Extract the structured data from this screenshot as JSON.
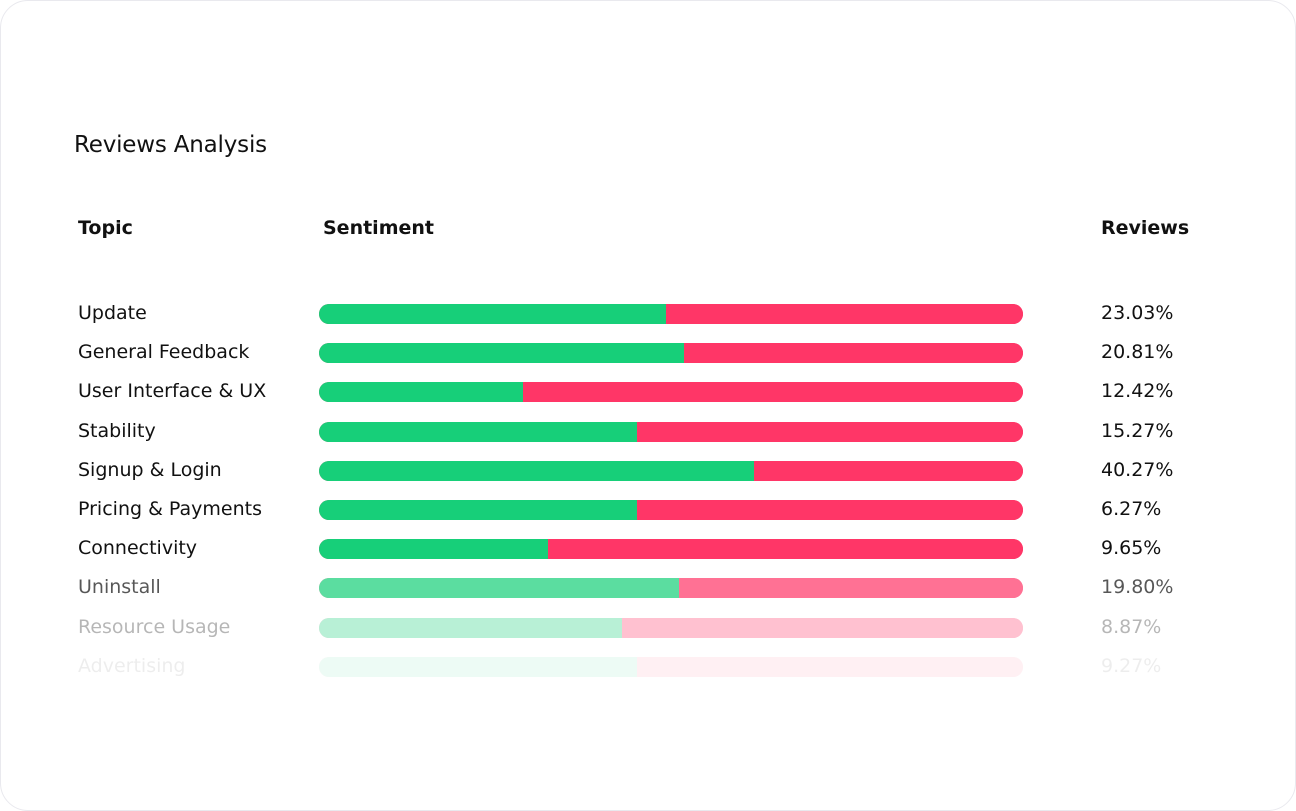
{
  "title": "Reviews Analysis",
  "headers": {
    "topic": "Topic",
    "sentiment": "Sentiment",
    "reviews": "Reviews"
  },
  "colors": {
    "positive": "#17cf79",
    "negative": "#ff3667",
    "text": "#111111"
  },
  "rows": [
    {
      "topic": "Update",
      "positive": 0.493,
      "reviews": "23.03%",
      "opacity": 1
    },
    {
      "topic": "General Feedback",
      "positive": 0.518,
      "reviews": "20.81%",
      "opacity": 1
    },
    {
      "topic": "User Interface & UX",
      "positive": 0.29,
      "reviews": "12.42%",
      "opacity": 1
    },
    {
      "topic": "Stability",
      "positive": 0.452,
      "reviews": "15.27%",
      "opacity": 1
    },
    {
      "topic": "Signup & Login",
      "positive": 0.618,
      "reviews": "40.27%",
      "opacity": 1
    },
    {
      "topic": "Pricing & Payments",
      "positive": 0.452,
      "reviews": "6.27%",
      "opacity": 1
    },
    {
      "topic": "Connectivity",
      "positive": 0.325,
      "reviews": "9.65%",
      "opacity": 1
    },
    {
      "topic": "Uninstall",
      "positive": 0.511,
      "reviews": "19.80%",
      "opacity": 0.7
    },
    {
      "topic": "Resource Usage",
      "positive": 0.43,
      "reviews": "8.87%",
      "opacity": 0.3
    },
    {
      "topic": "Advertising",
      "positive": 0.452,
      "reviews": "9.27%",
      "opacity": 0.07
    }
  ]
}
